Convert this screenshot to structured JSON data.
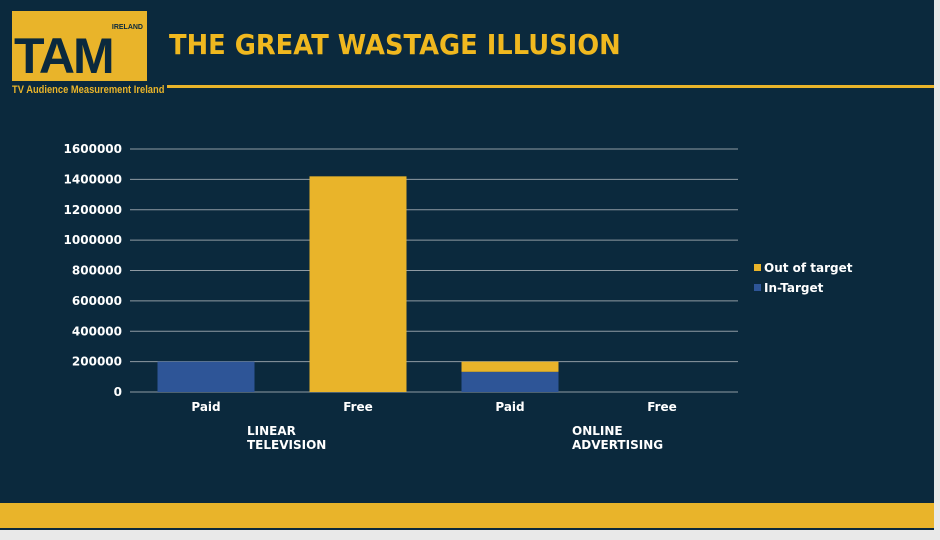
{
  "logo": {
    "main": "TAM",
    "small": "IRELAND",
    "subtitle": "TV Audience Measurement Ireland"
  },
  "header": {
    "title": "THE GREAT WASTAGE ILLUSION"
  },
  "chart_data": {
    "type": "bar",
    "stacked": true,
    "title": "",
    "categories": [
      "Paid",
      "Free",
      "Paid",
      "Free"
    ],
    "groups": [
      {
        "label": [
          "LINEAR",
          "TELEVISION"
        ],
        "categories": [
          "Paid",
          "Free"
        ]
      },
      {
        "label": [
          "ONLINE",
          "ADVERTISING"
        ],
        "categories": [
          "Paid",
          "Free"
        ]
      }
    ],
    "series": [
      {
        "name": "In-Target",
        "color": "#2e5597",
        "values": [
          200000,
          0,
          133000,
          0
        ]
      },
      {
        "name": "Out of target",
        "color": "#e9b42a",
        "values": [
          0,
          1420000,
          67000,
          0
        ]
      }
    ],
    "ylim": [
      0,
      1600000
    ],
    "yticks": [
      "0",
      "200000",
      "400000",
      "600000",
      "800000",
      "1000000",
      "1200000",
      "1400000",
      "1600000"
    ],
    "grid": true,
    "legend_position": "right",
    "legend_order": [
      "Out of target",
      "In-Target"
    ]
  }
}
